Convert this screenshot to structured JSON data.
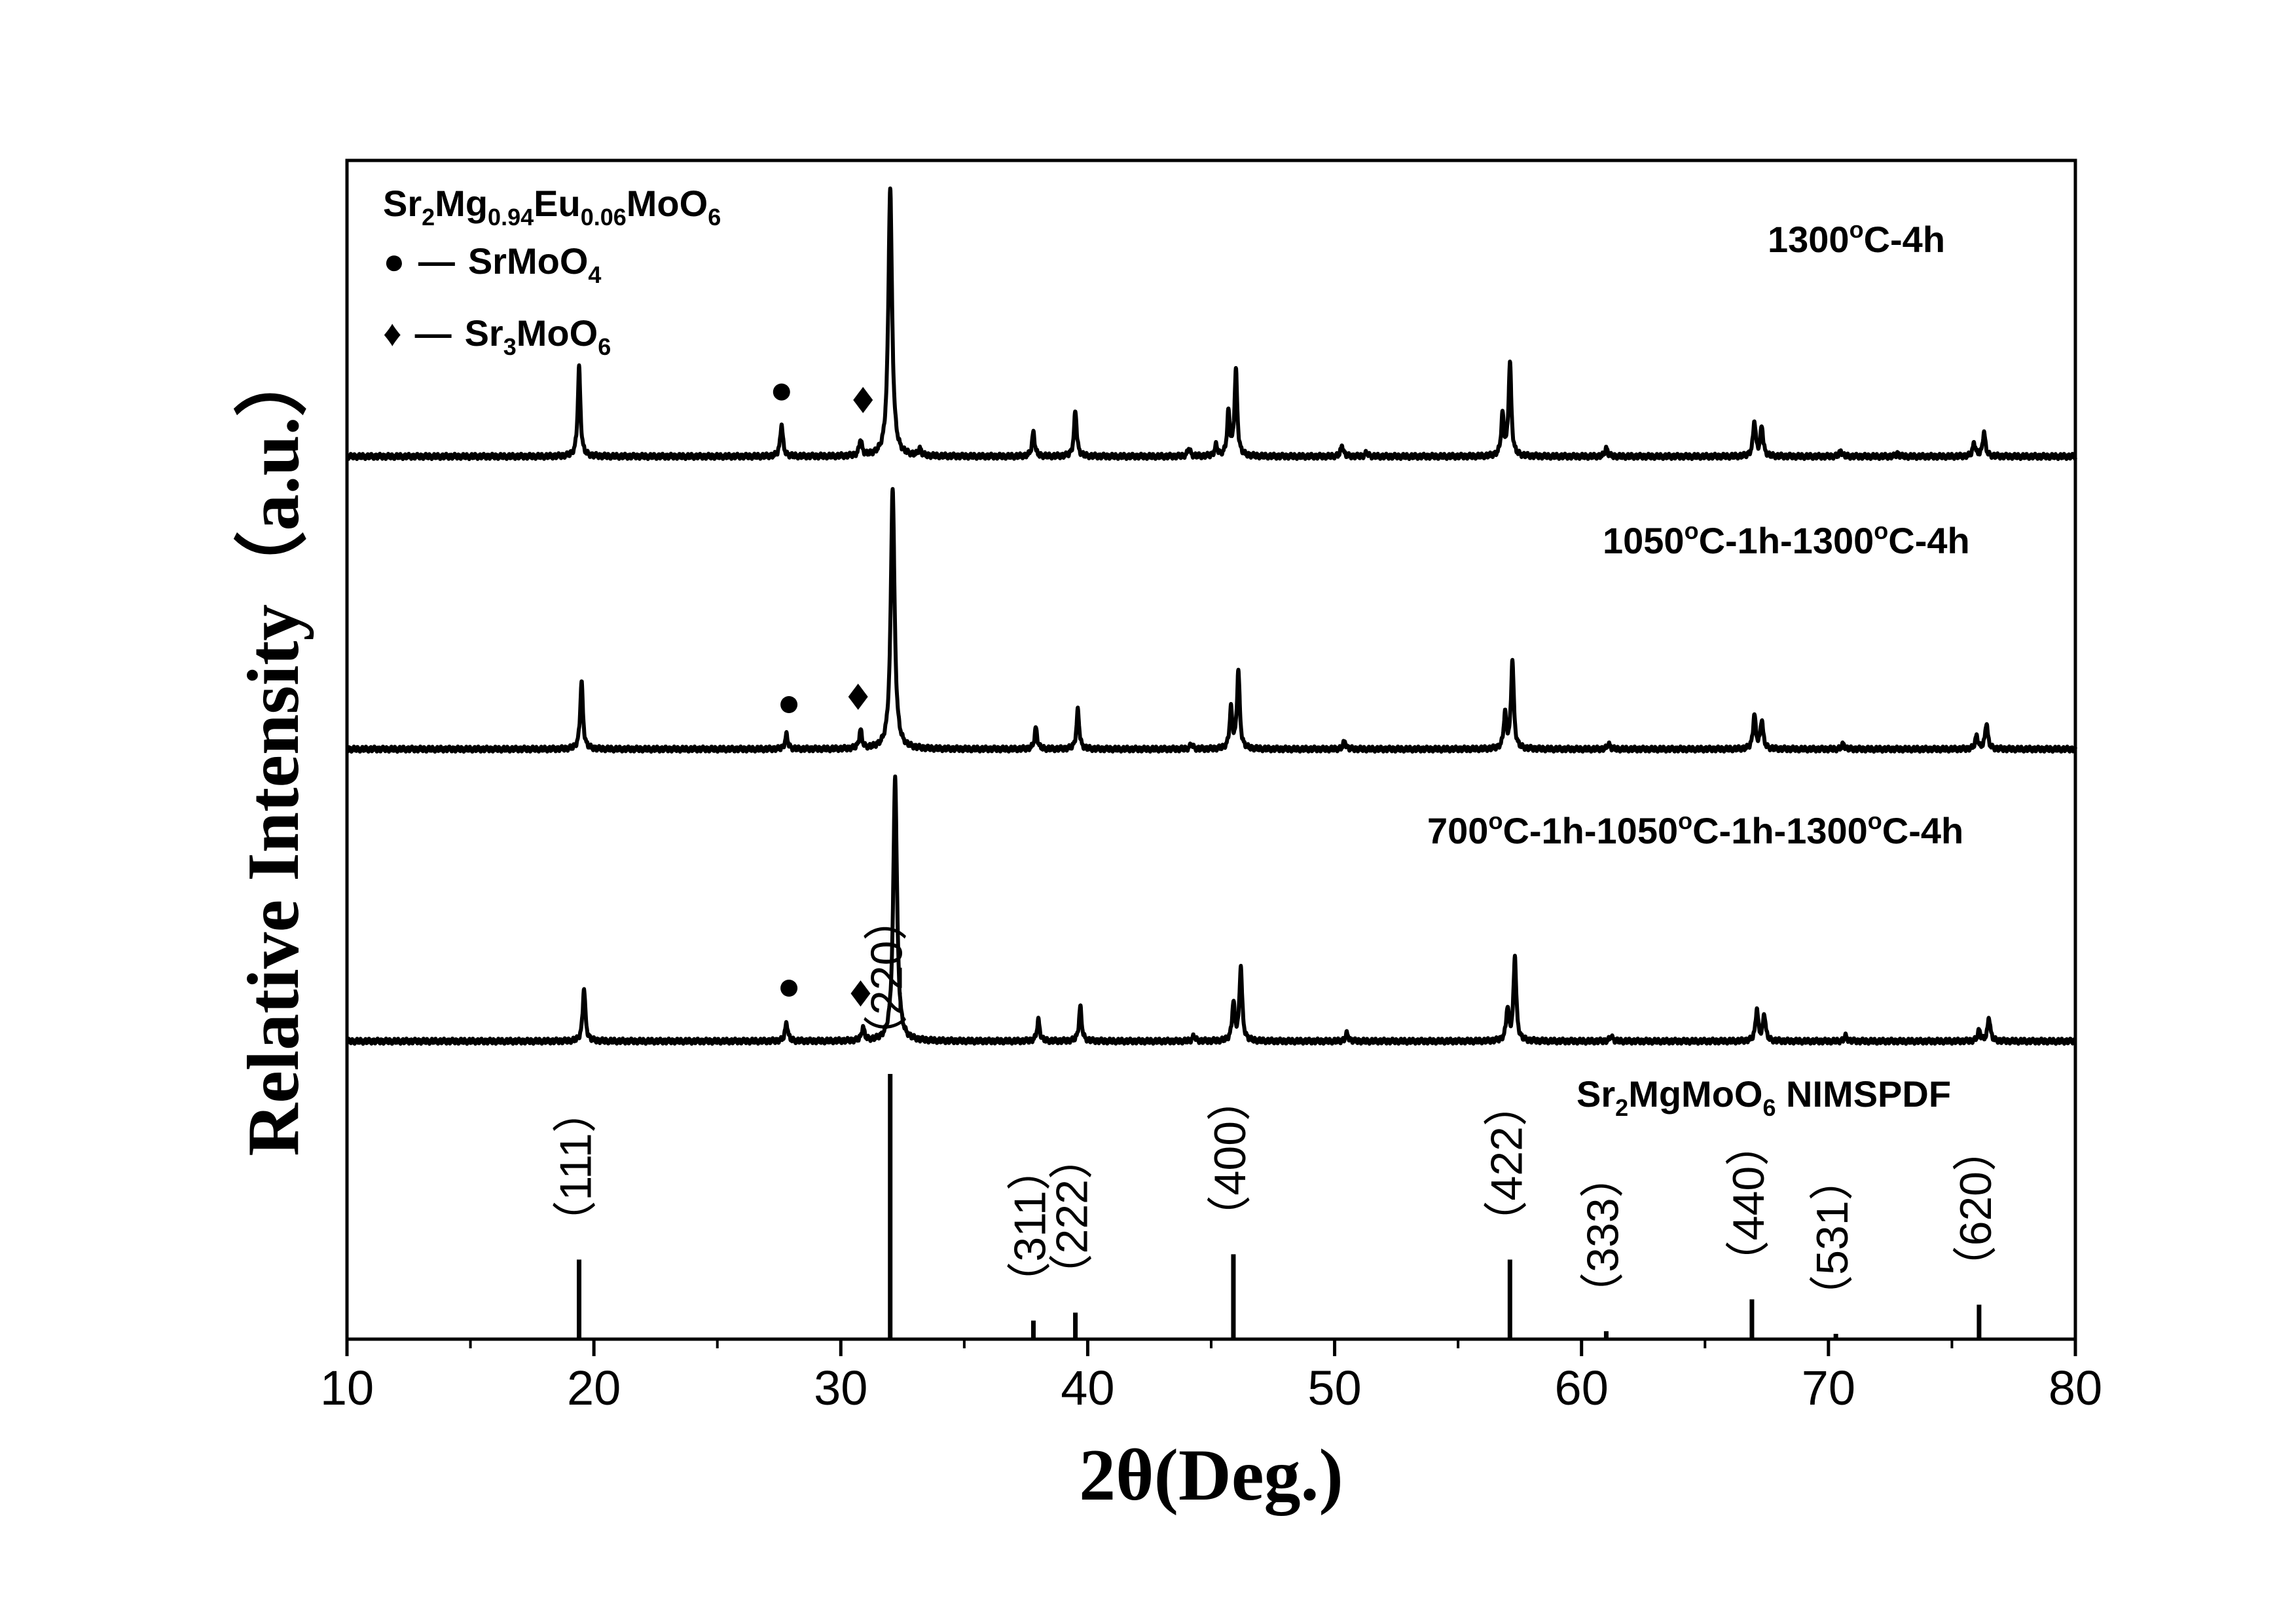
{
  "chart_data": {
    "type": "line",
    "xlabel": "2θ(Deg.)",
    "ylabel": "Relative Intensity（a.u.）",
    "xlim": [
      10,
      80
    ],
    "xticks": [
      10,
      20,
      30,
      40,
      50,
      60,
      70,
      80
    ],
    "xtick_labels": [
      "10",
      "20",
      "30",
      "40",
      "50",
      "60",
      "70",
      "80"
    ],
    "grid": false,
    "legend": {
      "position": "top-left",
      "compound": {
        "base": [
          "Sr",
          "Mg",
          "Eu",
          "MoO"
        ],
        "subs": [
          "2",
          "0.94",
          "0.06",
          "6"
        ]
      },
      "entries": [
        {
          "marker": "●",
          "dash": "—",
          "parts": [
            "SrMoO",
            "4"
          ]
        },
        {
          "marker": "♦",
          "dash": "—",
          "parts": [
            "Sr",
            "3",
            "MoO",
            "6"
          ]
        }
      ]
    },
    "series": [
      {
        "name": "1300°C-4h",
        "label_parts": [
          "1300",
          "o",
          "C-4h"
        ],
        "peaks": [
          {
            "x": 19.4,
            "h": 0.33
          },
          {
            "x": 27.6,
            "h": 0.12
          },
          {
            "x": 30.8,
            "h": 0.06
          },
          {
            "x": 32.0,
            "h": 1.0
          },
          {
            "x": 33.2,
            "h": 0.025
          },
          {
            "x": 37.8,
            "h": 0.09
          },
          {
            "x": 39.5,
            "h": 0.17
          },
          {
            "x": 44.1,
            "h": 0.03
          },
          {
            "x": 45.2,
            "h": 0.04
          },
          {
            "x": 45.7,
            "h": 0.16
          },
          {
            "x": 46.0,
            "h": 0.32
          },
          {
            "x": 50.3,
            "h": 0.04
          },
          {
            "x": 51.3,
            "h": 0.015
          },
          {
            "x": 56.8,
            "h": 0.15
          },
          {
            "x": 57.1,
            "h": 0.35
          },
          {
            "x": 61.0,
            "h": 0.03
          },
          {
            "x": 67.0,
            "h": 0.13
          },
          {
            "x": 67.3,
            "h": 0.11
          },
          {
            "x": 70.5,
            "h": 0.02
          },
          {
            "x": 72.8,
            "h": 0.01
          },
          {
            "x": 75.9,
            "h": 0.05
          },
          {
            "x": 76.3,
            "h": 0.09
          }
        ],
        "markers": [
          {
            "symbol": "●",
            "x": 27.6,
            "h": 0.24
          },
          {
            "symbol": "♦",
            "x": 30.9,
            "h": 0.21
          }
        ]
      },
      {
        "name": "1050°C-1h-1300°C-4h",
        "label_parts": [
          "1050",
          "o",
          "C-1h-1300",
          "o",
          "C-4h"
        ],
        "peaks": [
          {
            "x": 19.5,
            "h": 0.26
          },
          {
            "x": 27.8,
            "h": 0.055
          },
          {
            "x": 30.8,
            "h": 0.07
          },
          {
            "x": 32.1,
            "h": 1.0
          },
          {
            "x": 37.9,
            "h": 0.08
          },
          {
            "x": 39.6,
            "h": 0.15
          },
          {
            "x": 44.2,
            "h": 0.02
          },
          {
            "x": 45.8,
            "h": 0.15
          },
          {
            "x": 46.1,
            "h": 0.3
          },
          {
            "x": 50.4,
            "h": 0.03
          },
          {
            "x": 56.9,
            "h": 0.13
          },
          {
            "x": 57.2,
            "h": 0.34
          },
          {
            "x": 61.1,
            "h": 0.02
          },
          {
            "x": 67.0,
            "h": 0.13
          },
          {
            "x": 67.3,
            "h": 0.11
          },
          {
            "x": 70.6,
            "h": 0.02
          },
          {
            "x": 76.0,
            "h": 0.05
          },
          {
            "x": 76.4,
            "h": 0.1
          }
        ],
        "markers": [
          {
            "symbol": "●",
            "x": 27.9,
            "h": 0.17
          },
          {
            "symbol": "♦",
            "x": 30.7,
            "h": 0.2
          }
        ]
      },
      {
        "name": "700°C-1h-1050°C-1h-1300°C-4h",
        "label_parts": [
          "700",
          "o",
          "C-1h-1050",
          "o",
          "C-1h-1300",
          "o",
          "C-4h"
        ],
        "peaks": [
          {
            "x": 19.6,
            "h": 0.2
          },
          {
            "x": 27.8,
            "h": 0.07
          },
          {
            "x": 30.9,
            "h": 0.05
          },
          {
            "x": 32.2,
            "h": 1.0
          },
          {
            "x": 38.0,
            "h": 0.08
          },
          {
            "x": 39.7,
            "h": 0.13
          },
          {
            "x": 44.3,
            "h": 0.02
          },
          {
            "x": 45.9,
            "h": 0.14
          },
          {
            "x": 46.2,
            "h": 0.28
          },
          {
            "x": 50.5,
            "h": 0.03
          },
          {
            "x": 57.0,
            "h": 0.12
          },
          {
            "x": 57.3,
            "h": 0.32
          },
          {
            "x": 61.2,
            "h": 0.02
          },
          {
            "x": 67.1,
            "h": 0.12
          },
          {
            "x": 67.4,
            "h": 0.1
          },
          {
            "x": 70.7,
            "h": 0.02
          },
          {
            "x": 76.1,
            "h": 0.04
          },
          {
            "x": 76.5,
            "h": 0.09
          }
        ],
        "markers": [
          {
            "symbol": "●",
            "x": 27.9,
            "h": 0.2
          },
          {
            "symbol": "♦",
            "x": 30.8,
            "h": 0.18
          }
        ]
      }
    ],
    "reference": {
      "name": "Sr2MgMoO6 NIMSPDF",
      "label_parts": [
        "Sr",
        "2",
        "MgMoO",
        "6",
        " NIMSPDF"
      ],
      "lines": [
        {
          "hkl": "（111）",
          "x": 19.4,
          "h": 0.3
        },
        {
          "hkl": "（220）",
          "x": 32.0,
          "h": 1.0
        },
        {
          "hkl": "（311）",
          "x": 37.8,
          "h": 0.07
        },
        {
          "hkl": "（222）",
          "x": 39.5,
          "h": 0.1
        },
        {
          "hkl": "（400）",
          "x": 45.9,
          "h": 0.32
        },
        {
          "hkl": "（422）",
          "x": 57.1,
          "h": 0.3
        },
        {
          "hkl": "（333）",
          "x": 61.0,
          "h": 0.03
        },
        {
          "hkl": "（440）",
          "x": 66.9,
          "h": 0.15
        },
        {
          "hkl": "（531）",
          "x": 70.3,
          "h": 0.02
        },
        {
          "hkl": "（620）",
          "x": 76.1,
          "h": 0.13
        }
      ]
    }
  }
}
